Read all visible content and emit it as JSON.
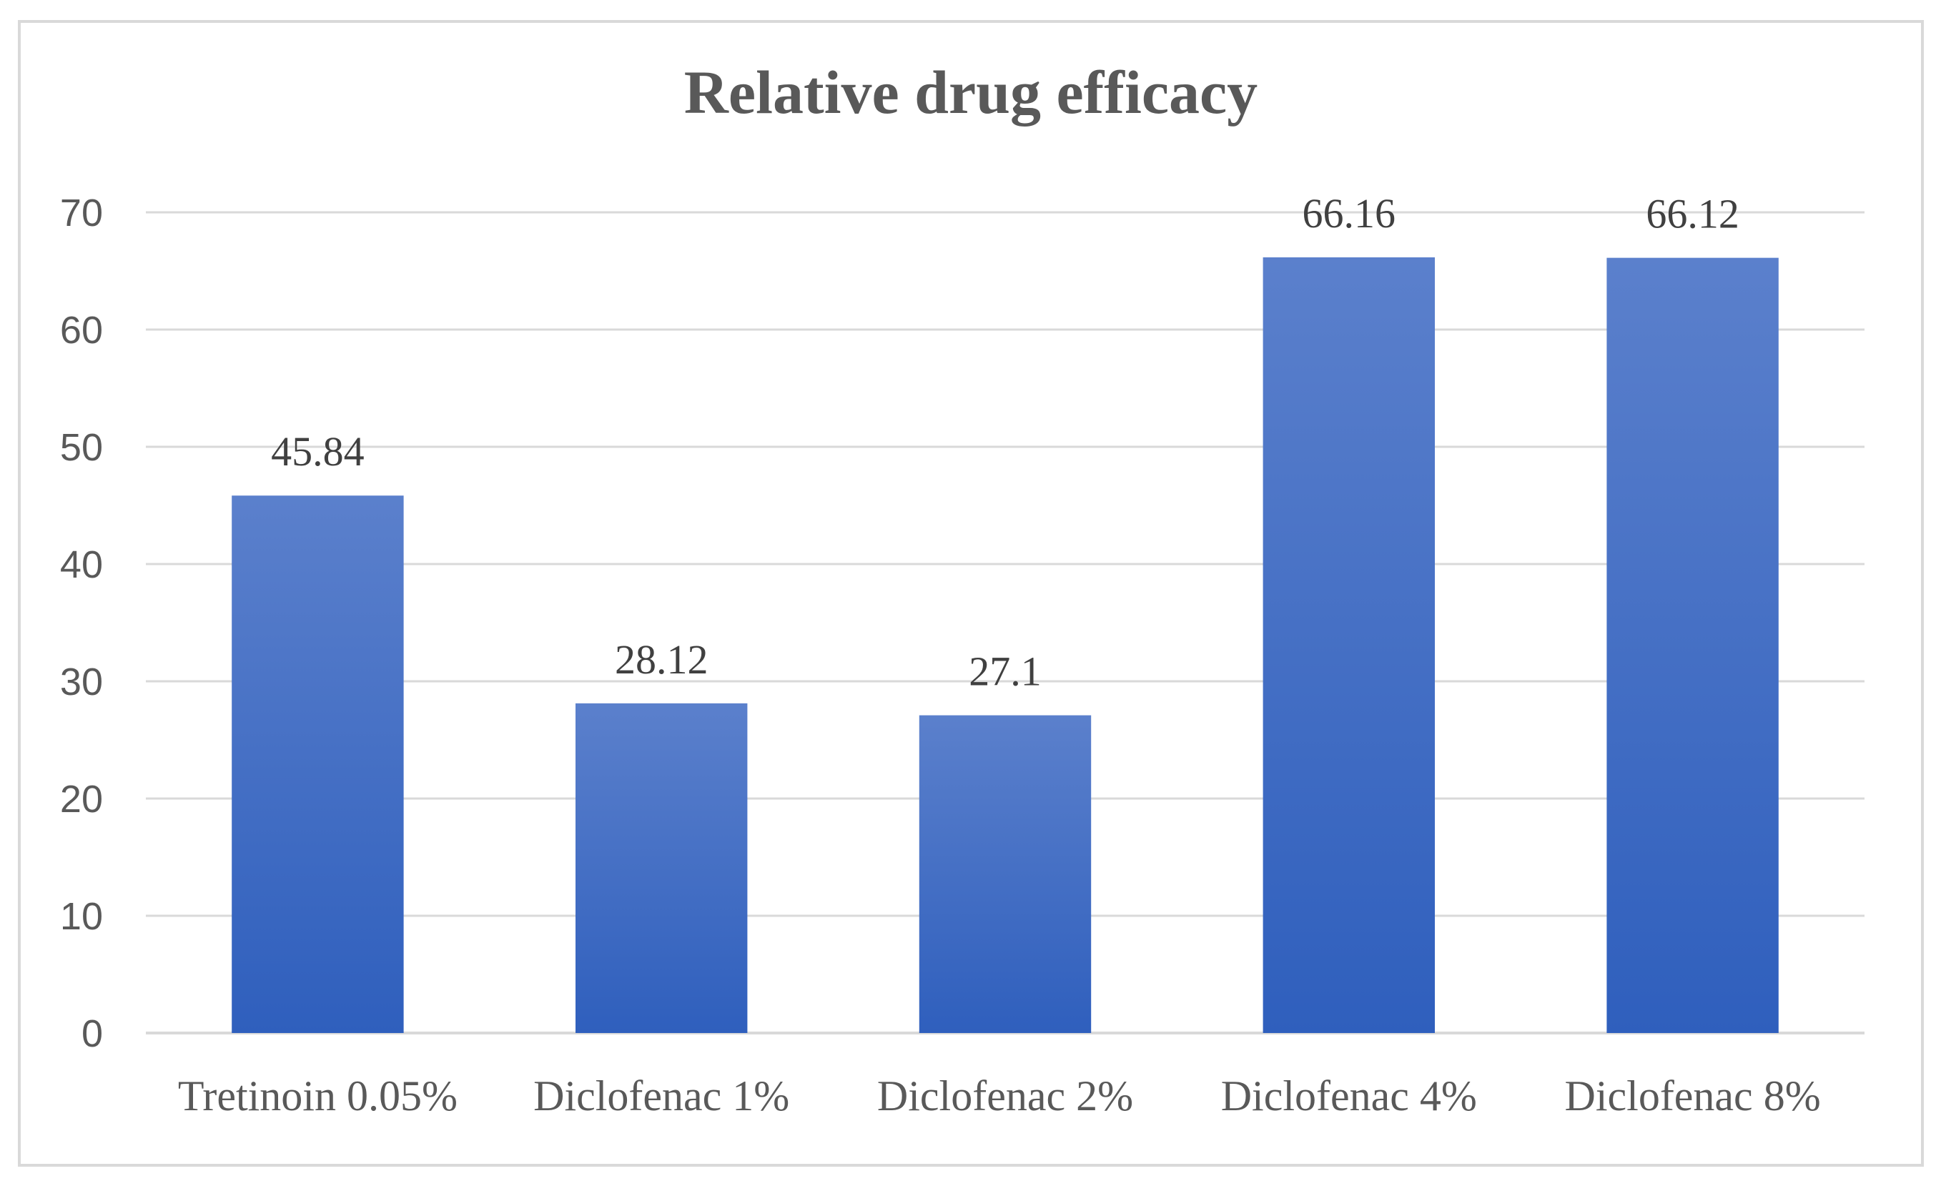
{
  "chart_data": {
    "type": "bar",
    "title": "Relative drug efficacy",
    "categories": [
      "Tretinoin 0.05%",
      "Diclofenac 1%",
      "Diclofenac 2%",
      "Diclofenac 4%",
      "Diclofenac 8%"
    ],
    "values": [
      45.84,
      28.12,
      27.1,
      66.16,
      66.12
    ],
    "data_labels": [
      "45.84",
      "28.12",
      "27.1",
      "66.16",
      "66.12"
    ],
    "xlabel": "",
    "ylabel": "",
    "ylim": [
      0,
      70
    ],
    "yticks": [
      0,
      10,
      20,
      30,
      40,
      50,
      60,
      70
    ],
    "grid": true,
    "legend": "none",
    "colors": {
      "bar_top": "#5b80cc",
      "bar_bottom": "#2f5fbd",
      "grid": "#d9d9d9",
      "text": "#595959"
    }
  }
}
